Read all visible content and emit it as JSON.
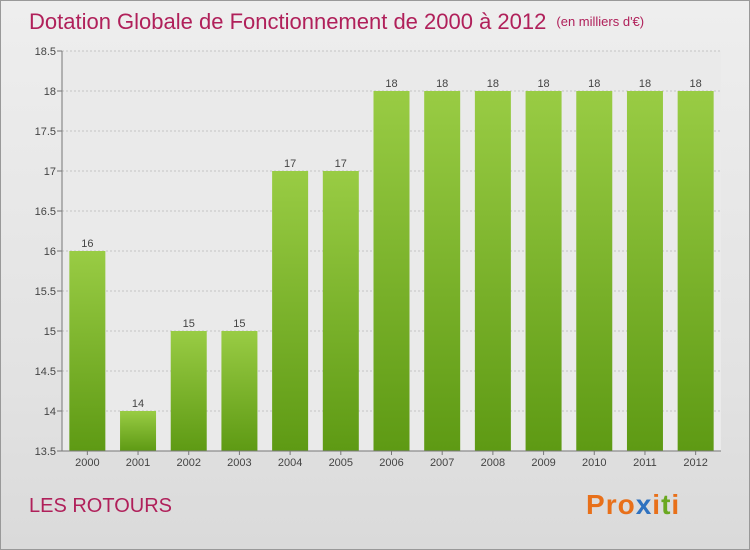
{
  "header": {
    "title": "Dotation Globale de Fonctionnement de 2000 à 2012",
    "unit": "(en milliers d'€)"
  },
  "footer": {
    "commune": "LES ROTOURS",
    "logo": "Proxiti"
  },
  "colors": {
    "title": "#b0205a",
    "bar_light": "#99cc44",
    "bar_dark": "#5e9a14",
    "logo_letters": [
      "#e8701a",
      "#e8701a",
      "#e8701a",
      "#2f72c0",
      "#e8701a",
      "#6aa820"
    ]
  },
  "chart_data": {
    "type": "bar",
    "title": "Dotation Globale de Fonctionnement de 2000 à 2012",
    "categories": [
      "2000",
      "2001",
      "2002",
      "2003",
      "2004",
      "2005",
      "2006",
      "2007",
      "2008",
      "2009",
      "2010",
      "2011",
      "2012"
    ],
    "values": [
      16,
      14,
      15,
      15,
      17,
      17,
      18,
      18,
      18,
      18,
      18,
      18,
      18
    ],
    "ylim": [
      13.5,
      18.5
    ],
    "yticks": [
      "13.5",
      "14",
      "14.5",
      "15",
      "15.5",
      "16",
      "16.5",
      "17",
      "17.5",
      "18",
      "18.5"
    ],
    "grid": true
  }
}
